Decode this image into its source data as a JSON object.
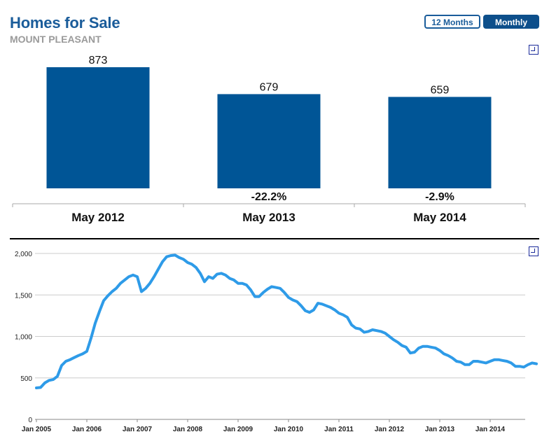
{
  "header": {
    "title": "Homes for Sale",
    "subtitle": "MOUNT PLEASANT"
  },
  "toggles": {
    "twelve_months": "12 Months",
    "monthly": "Monthly"
  },
  "colors": {
    "bar": "#005596",
    "line": "#2e9be8",
    "title": "#1a5c9a",
    "grid": "#cccccc"
  },
  "chart_data": [
    {
      "type": "bar",
      "title": "Homes for Sale",
      "categories": [
        "May 2012",
        "May 2013",
        "May 2014"
      ],
      "values": [
        873,
        679,
        659
      ],
      "change_labels": [
        "",
        "-22.2%",
        "-2.9%"
      ],
      "ylim": [
        0,
        900
      ]
    },
    {
      "type": "line",
      "title": "Homes for Sale",
      "x_ticks": [
        "Jan 2005",
        "Jan 2006",
        "Jan 2007",
        "Jan 2008",
        "Jan 2009",
        "Jan 2010",
        "Jan 2011",
        "Jan 2012",
        "Jan 2013",
        "Jan 2014"
      ],
      "y_ticks": [
        "0",
        "500",
        "1,000",
        "1,500",
        "2,000"
      ],
      "ylim": [
        0,
        2000
      ],
      "x_start": "Jan 2005",
      "series": [
        {
          "name": "Homes for Sale",
          "values": [
            380,
            385,
            440,
            470,
            480,
            520,
            650,
            700,
            720,
            745,
            770,
            790,
            820,
            980,
            1160,
            1300,
            1430,
            1490,
            1540,
            1580,
            1640,
            1680,
            1720,
            1740,
            1720,
            1540,
            1580,
            1640,
            1720,
            1810,
            1900,
            1960,
            1975,
            1980,
            1950,
            1930,
            1890,
            1870,
            1830,
            1760,
            1660,
            1720,
            1700,
            1750,
            1760,
            1740,
            1700,
            1680,
            1640,
            1640,
            1620,
            1560,
            1480,
            1480,
            1530,
            1570,
            1600,
            1590,
            1580,
            1530,
            1470,
            1440,
            1420,
            1370,
            1310,
            1290,
            1320,
            1400,
            1390,
            1370,
            1350,
            1320,
            1280,
            1260,
            1230,
            1140,
            1100,
            1090,
            1050,
            1060,
            1080,
            1070,
            1060,
            1040,
            1000,
            960,
            930,
            890,
            870,
            800,
            810,
            860,
            880,
            880,
            870,
            860,
            830,
            790,
            770,
            740,
            700,
            690,
            660,
            660,
            700,
            700,
            690,
            680,
            700,
            720,
            720,
            710,
            700,
            680,
            640,
            640,
            630,
            660,
            680,
            670
          ]
        }
      ]
    }
  ]
}
